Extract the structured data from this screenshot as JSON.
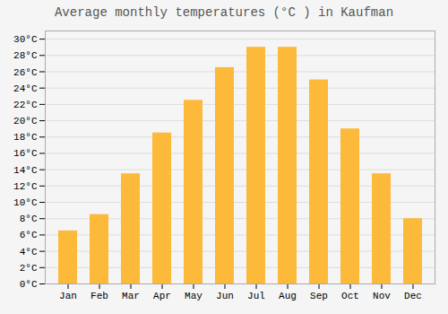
{
  "chart_data": {
    "type": "bar",
    "title": "Average monthly temperatures (°C ) in Kaufman",
    "categories": [
      "Jan",
      "Feb",
      "Mar",
      "Apr",
      "May",
      "Jun",
      "Jul",
      "Aug",
      "Sep",
      "Oct",
      "Nov",
      "Dec"
    ],
    "values": [
      6.5,
      8.5,
      13.5,
      18.5,
      22.5,
      26.5,
      29.0,
      29.0,
      25.0,
      19.0,
      13.5,
      8.0
    ],
    "color": "#FDB93A",
    "ylim": [
      0,
      31
    ],
    "yticks": [
      {
        "value": 0,
        "label": "0°C"
      },
      {
        "value": 2,
        "label": "2°C"
      },
      {
        "value": 4,
        "label": "4°C"
      },
      {
        "value": 6,
        "label": "6°C"
      },
      {
        "value": 8,
        "label": "8°C"
      },
      {
        "value": 10,
        "label": "10°C"
      },
      {
        "value": 12,
        "label": "12°C"
      },
      {
        "value": 14,
        "label": "14°C"
      },
      {
        "value": 16,
        "label": "16°C"
      },
      {
        "value": 18,
        "label": "18°C"
      },
      {
        "value": 20,
        "label": "20°C"
      },
      {
        "value": 22,
        "label": "22°C"
      },
      {
        "value": 24,
        "label": "24°C"
      },
      {
        "value": 26,
        "label": "26°C"
      },
      {
        "value": 28,
        "label": "28°C"
      },
      {
        "value": 30,
        "label": "30°C"
      }
    ],
    "grid": true
  }
}
